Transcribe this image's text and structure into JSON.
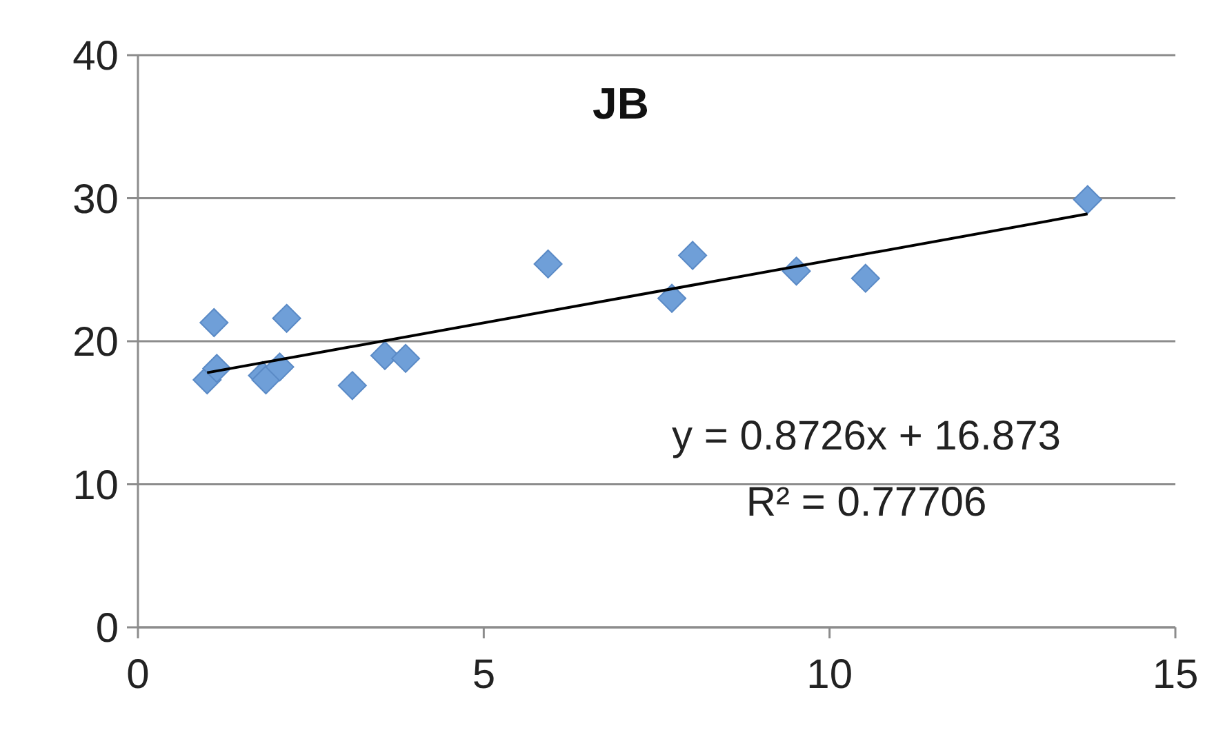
{
  "chart_data": {
    "type": "scatter",
    "title": "JB",
    "series": [
      {
        "color": "#6f9fd8",
        "marker": "diamond",
        "x": [
          1.0,
          1.1,
          1.14,
          1.8,
          1.85,
          2.05,
          2.15,
          3.1,
          3.57,
          3.87,
          5.93,
          7.72,
          8.02,
          9.52,
          10.52,
          13.73
        ],
        "values": [
          17.3,
          21.3,
          18.1,
          17.6,
          17.3,
          18.2,
          21.6,
          16.9,
          19.0,
          18.8,
          25.4,
          23.0,
          26.0,
          24.9,
          24.4,
          29.9
        ]
      },
      {
        "type": "line",
        "color": "#000000",
        "marker": "none",
        "x": [
          1.0,
          13.73
        ],
        "values": [
          17.8,
          28.9
        ]
      }
    ],
    "xlim": [
      0,
      15
    ],
    "xticks": [
      0,
      5,
      10,
      15
    ],
    "ylim": [
      0,
      40
    ],
    "yticks": [
      0,
      10,
      20,
      30,
      40
    ],
    "grid": "y",
    "annotations": [
      "y = 0.8726x + 16.873",
      "R² = 0.77706"
    ]
  }
}
